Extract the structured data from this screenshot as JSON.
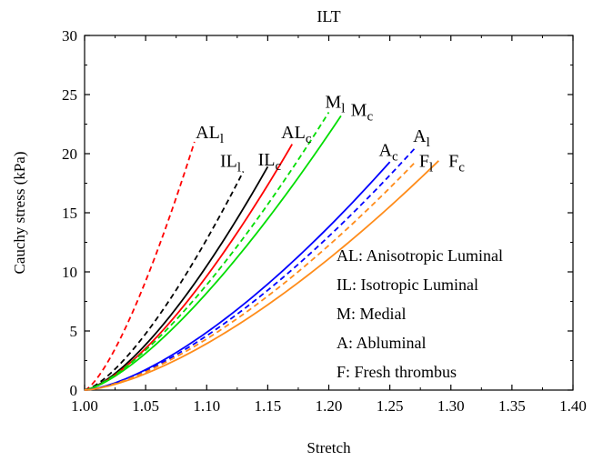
{
  "chart_data": {
    "type": "line",
    "title": "ILT",
    "xlabel": "Stretch",
    "ylabel": "Cauchy stress (kPa)",
    "xlim": [
      1.0,
      1.4
    ],
    "ylim": [
      0,
      30
    ],
    "xticks": [
      "1.00",
      "1.05",
      "1.10",
      "1.15",
      "1.20",
      "1.25",
      "1.30",
      "1.35",
      "1.40"
    ],
    "yticks": [
      "0",
      "5",
      "10",
      "15",
      "20",
      "25",
      "30"
    ],
    "grid": false,
    "series": [
      {
        "name": "AL",
        "sub": "l",
        "color": "#ff0000",
        "style": "dashed",
        "exponent": 1.4,
        "x": [
          1.0,
          1.01,
          1.02,
          1.03,
          1.04,
          1.05,
          1.06,
          1.07,
          1.08,
          1.09
        ],
        "y": [
          0,
          1.0,
          2.6,
          4.6,
          6.9,
          9.5,
          12.4,
          15.6,
          19.2,
          21.0
        ]
      },
      {
        "name": "IL",
        "sub": "l",
        "color": "#000000",
        "style": "dashed",
        "exponent": 1.42,
        "x": [
          1.0,
          1.02,
          1.04,
          1.06,
          1.08,
          1.1,
          1.12,
          1.13
        ],
        "y": [
          0,
          1.9,
          4.8,
          7.9,
          11.0,
          14.0,
          17.2,
          18.5
        ]
      },
      {
        "name": "IL",
        "sub": "c",
        "color": "#000000",
        "style": "solid",
        "exponent": 1.45,
        "x": [
          1.0,
          1.025,
          1.05,
          1.075,
          1.1,
          1.125,
          1.15
        ],
        "y": [
          0,
          2.5,
          5.6,
          8.9,
          12.3,
          15.4,
          18.9
        ]
      },
      {
        "name": "AL",
        "sub": "c",
        "color": "#ff0000",
        "style": "solid",
        "exponent": 1.45,
        "x": [
          1.0,
          1.03,
          1.06,
          1.09,
          1.12,
          1.15,
          1.17
        ],
        "y": [
          0,
          2.8,
          6.4,
          10.2,
          13.9,
          17.8,
          20.8
        ]
      },
      {
        "name": "M",
        "sub": "l",
        "color": "#00dd00",
        "style": "dashed",
        "exponent": 1.4,
        "x": [
          1.0,
          1.04,
          1.08,
          1.12,
          1.16,
          1.2
        ],
        "y": [
          0,
          3.9,
          8.1,
          12.8,
          17.9,
          23.5
        ]
      },
      {
        "name": "M",
        "sub": "c",
        "color": "#00dd00",
        "style": "solid",
        "exponent": 1.4,
        "x": [
          1.0,
          1.04,
          1.08,
          1.12,
          1.16,
          1.21
        ],
        "y": [
          0,
          3.4,
          7.5,
          11.7,
          16.6,
          23.2
        ]
      },
      {
        "name": "A",
        "sub": "c",
        "color": "#0000ff",
        "style": "solid",
        "exponent": 1.5,
        "x": [
          1.0,
          1.05,
          1.1,
          1.15,
          1.2,
          1.25
        ],
        "y": [
          0,
          2.8,
          6.3,
          10.2,
          14.7,
          19.3
        ]
      },
      {
        "name": "A",
        "sub": "l",
        "color": "#0000ff",
        "style": "dashed",
        "exponent": 1.5,
        "x": [
          1.0,
          1.05,
          1.1,
          1.15,
          1.2,
          1.25,
          1.27
        ],
        "y": [
          0,
          2.7,
          6.0,
          9.6,
          13.9,
          18.5,
          20.4
        ]
      },
      {
        "name": "F",
        "sub": "l",
        "color": "#ff8c1a",
        "style": "dashed",
        "exponent": 1.5,
        "x": [
          1.0,
          1.05,
          1.1,
          1.15,
          1.2,
          1.25,
          1.27
        ],
        "y": [
          0,
          2.6,
          5.7,
          9.1,
          13.0,
          17.1,
          19.2
        ]
      },
      {
        "name": "F",
        "sub": "c",
        "color": "#ff8c1a",
        "style": "solid",
        "exponent": 1.5,
        "x": [
          1.0,
          1.05,
          1.1,
          1.15,
          1.2,
          1.25,
          1.29
        ],
        "y": [
          0,
          2.4,
          5.2,
          8.3,
          11.9,
          15.6,
          19.4
        ]
      }
    ],
    "annotations": [
      {
        "text": "AL",
        "sub": "l",
        "x": 1.091,
        "y": 21.3
      },
      {
        "text": "IL",
        "sub": "l",
        "x": 1.111,
        "y": 18.9
      },
      {
        "text": "IL",
        "sub": "c",
        "x": 1.142,
        "y": 19.0
      },
      {
        "text": "AL",
        "sub": "c",
        "x": 1.161,
        "y": 21.3
      },
      {
        "text": "M",
        "sub": "l",
        "x": 1.197,
        "y": 23.9
      },
      {
        "text": "M",
        "sub": "c",
        "x": 1.218,
        "y": 23.2
      },
      {
        "text": "A",
        "sub": "c",
        "x": 1.241,
        "y": 19.8
      },
      {
        "text": "A",
        "sub": "l",
        "x": 1.269,
        "y": 21.0
      },
      {
        "text": "F",
        "sub": "l",
        "x": 1.274,
        "y": 18.9
      },
      {
        "text": "F",
        "sub": "c",
        "x": 1.298,
        "y": 18.9
      }
    ],
    "legend_text": [
      "AL: Anisotropic Luminal",
      "IL: Isotropic Luminal",
      "M: Medial",
      "A: Abluminal",
      "F: Fresh thrombus"
    ],
    "legend_position": "bottom-right"
  }
}
